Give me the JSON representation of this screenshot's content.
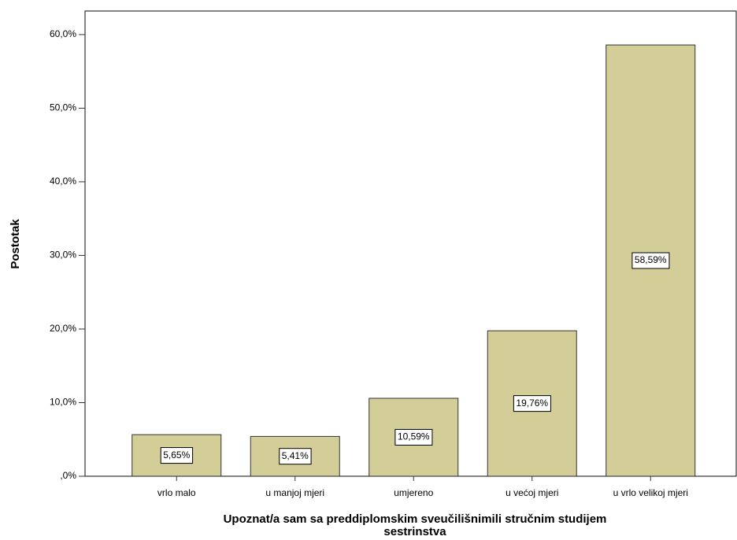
{
  "chart_data": {
    "type": "bar",
    "categories": [
      "vrlo malo",
      "u manjoj mjeri",
      "umjereno",
      "u većoj mjeri",
      "u vrlo velikoj mjeri"
    ],
    "values": [
      5.65,
      5.41,
      10.59,
      19.76,
      58.59
    ],
    "value_labels": [
      "5,65%",
      "5,41%",
      "10,59%",
      "19,76%",
      "58,59%"
    ],
    "color": "#d3ce97",
    "y_label": "Postotak",
    "x_label": [
      "Upoznat/a sam sa preddiplomskim sveučilišnimili stručnim studijem",
      "sestrinstva"
    ],
    "ylim": [
      0,
      63.2
    ],
    "yticks": [
      {
        "value": 0,
        "label": ",0%"
      },
      {
        "value": 10,
        "label": "10,0%"
      },
      {
        "value": 20,
        "label": "20,0%"
      },
      {
        "value": 30,
        "label": "30,0%"
      },
      {
        "value": 40,
        "label": "40,0%"
      },
      {
        "value": 50,
        "label": "50,0%"
      },
      {
        "value": 60,
        "label": "60,0%"
      }
    ]
  }
}
